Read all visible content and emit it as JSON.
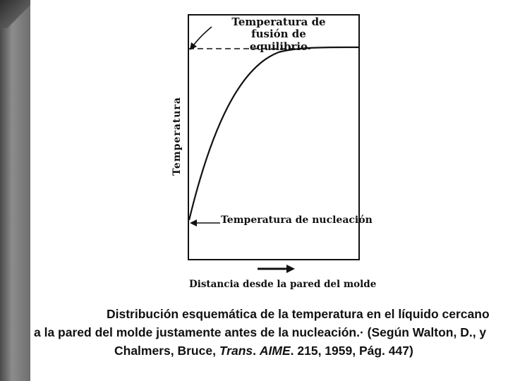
{
  "labels": {
    "fusion_line1": "Temperatura de fusión de",
    "fusion_line2": "equilibrio",
    "nucleation": "Temperatura de nucleación",
    "y_axis": "Temperatura",
    "x_axis": "Distancia desde la pared del molde"
  },
  "caption": {
    "line1": "Distribución esquemática de la temperatura en el líquido cercano",
    "line2": "a la pared del molde justamente antes de la nucleación.· (Según Walton, D., y",
    "line3_a": "Chalmers, Bruce, ",
    "line3_trans": "Trans",
    "line3_b": ". ",
    "line3_aime": "AIME",
    "line3_c": ". 215, 1959, Pág. 447)"
  },
  "colors": {
    "ink": "#111111",
    "sidebar": "#7a7a7a"
  }
}
